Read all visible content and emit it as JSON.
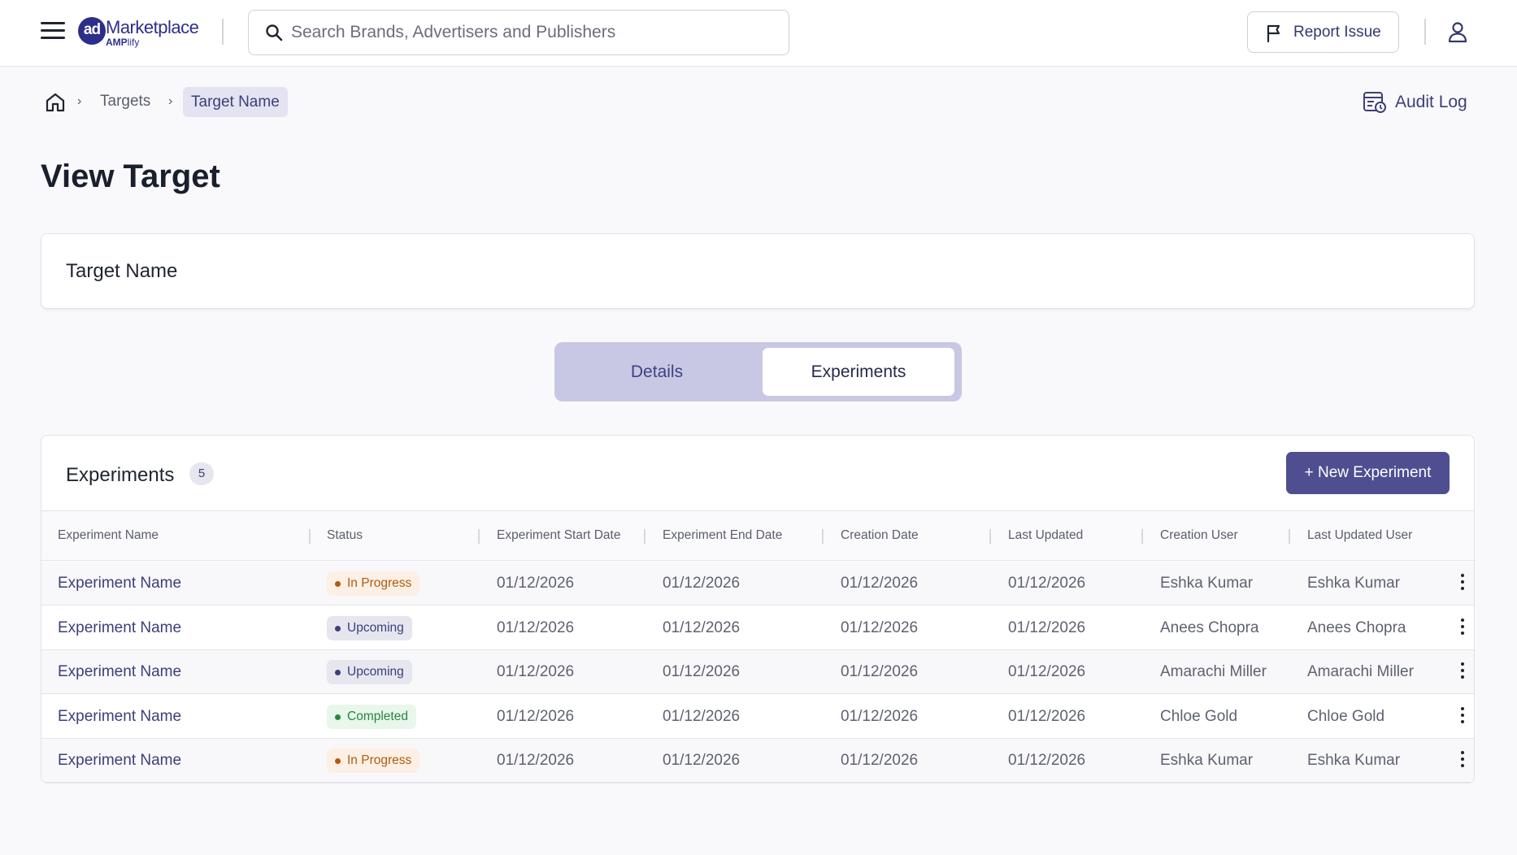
{
  "header": {
    "logo": {
      "ad": "ad",
      "marketplace": "Marketplace",
      "amplify": "AMP",
      "amplify_suffix": "lify"
    },
    "search": {
      "placeholder": "Search Brands, Advertisers and Publishers",
      "value": ""
    },
    "report_issue_label": "Report Issue"
  },
  "breadcrumb": {
    "items": [
      "Targets"
    ],
    "current": "Target Name"
  },
  "audit_log_label": "Audit Log",
  "page_title": "View Target",
  "target_name": "Target Name",
  "tabs": [
    {
      "label": "Details",
      "active": false
    },
    {
      "label": "Experiments",
      "active": true
    }
  ],
  "experiments": {
    "title": "Experiments",
    "count": "5",
    "new_button_label": "+ New Experiment",
    "columns": [
      "Experiment Name",
      "Status",
      "Experiment Start Date",
      "Experiment End Date",
      "Creation Date",
      "Last Updated",
      "Creation User",
      "Last Updated User"
    ],
    "rows": [
      {
        "name": "Experiment Name",
        "status": "In Progress",
        "start": "01/12/2026",
        "end": "01/12/2026",
        "created": "01/12/2026",
        "updated": "01/12/2026",
        "creation_user": "Eshka Kumar",
        "updated_user": "Eshka Kumar"
      },
      {
        "name": "Experiment Name",
        "status": "Upcoming",
        "start": "01/12/2026",
        "end": "01/12/2026",
        "created": "01/12/2026",
        "updated": "01/12/2026",
        "creation_user": "Anees Chopra",
        "updated_user": "Anees Chopra"
      },
      {
        "name": "Experiment Name",
        "status": "Upcoming",
        "start": "01/12/2026",
        "end": "01/12/2026",
        "created": "01/12/2026",
        "updated": "01/12/2026",
        "creation_user": "Amarachi Miller",
        "updated_user": "Amarachi Miller"
      },
      {
        "name": "Experiment Name",
        "status": "Completed",
        "start": "01/12/2026",
        "end": "01/12/2026",
        "created": "01/12/2026",
        "updated": "01/12/2026",
        "creation_user": "Chloe Gold",
        "updated_user": "Chloe Gold"
      },
      {
        "name": "Experiment Name",
        "status": "In Progress",
        "start": "01/12/2026",
        "end": "01/12/2026",
        "created": "01/12/2026",
        "updated": "01/12/2026",
        "creation_user": "Eshka Kumar",
        "updated_user": "Eshka Kumar"
      }
    ]
  },
  "colors": {
    "accent": "#4e4e90",
    "brand": "#2c2f8a",
    "tab_track": "#c8c8e4"
  },
  "icons": [
    "hamburger-icon",
    "search-icon",
    "flag-icon",
    "user-icon",
    "home-icon",
    "chevron-right-icon",
    "audit-log-icon",
    "kebab-menu-icon"
  ]
}
